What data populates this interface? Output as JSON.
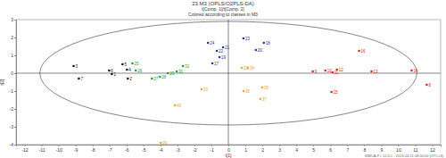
{
  "chart_data": {
    "type": "scatter",
    "title": "23.M3 (OPLS/O2PLS-DA)",
    "subtitle": "t[Comp. 1]/t[Comp. 2]",
    "annotations": [
      "Colored according to classes in M3",
      "SIMCA-P+ 12.0.1 - 2013-04-11 08:00:00 (UTC+8)"
    ],
    "x_label": "t[1]",
    "y_label": "t[2]",
    "xlim": [
      -12.5,
      12.5
    ],
    "xticks": [
      -12,
      -11,
      -10,
      -9,
      -8,
      -7,
      -6,
      -5,
      -4,
      -3,
      -2,
      -1,
      0,
      1,
      2,
      3,
      4,
      5,
      6,
      7,
      8,
      9,
      10,
      11,
      12
    ],
    "ylim": [
      -4,
      3
    ],
    "yticks": [
      -4,
      -3,
      -2,
      -1,
      0,
      1,
      2,
      3
    ],
    "grid": false,
    "marker": "circle",
    "ellipse": {
      "x_radius": 11.1,
      "y_radius": 2.9
    },
    "series": [
      {
        "color": "#111111",
        "labels": [
          "1",
          "2",
          "3",
          "4",
          "5",
          "6",
          "7"
        ],
        "x": [
          -6.86,
          -5.92,
          -9.11,
          -5.97,
          -6.23,
          -7.02,
          -8.8
        ],
        "values": [
          -0.05,
          -0.3,
          0.4,
          0.2,
          0.5,
          0.15,
          -0.3
        ]
      },
      {
        "color": "#1a9c3a",
        "labels": [
          "25",
          "26",
          "27",
          "28",
          "29",
          "30",
          "31"
        ],
        "x": [
          -5.65,
          -5.45,
          -4.5,
          -4.03,
          -3.56,
          -3.04,
          -2.67
        ],
        "values": [
          0.55,
          0.15,
          -0.3,
          -0.2,
          0,
          0.1,
          0.4
        ]
      },
      {
        "color": "#22309a",
        "labels": [
          "17",
          "18",
          "19",
          "20",
          "21",
          "22",
          "23",
          "24"
        ],
        "x": [
          -0.94,
          2.09,
          -0.52,
          1.62,
          -0.31,
          -0.68,
          0.89,
          -1.2
        ],
        "values": [
          0.55,
          1.7,
          0.9,
          1.3,
          1.45,
          1.25,
          1.95,
          1.7
        ]
      },
      {
        "color": "#f0a030",
        "labels": [
          "32",
          "33",
          "34",
          "35",
          "36",
          "37",
          "39",
          "40"
        ],
        "x": [
          0.79,
          -1.57,
          1.15,
          1.99,
          0.89,
          1.88,
          -3.98,
          -3.14
        ],
        "values": [
          0.3,
          -0.9,
          0.3,
          -0.8,
          -1.0,
          -1.45,
          -3.9,
          -1.8
        ]
      },
      {
        "color": "#e02020",
        "labels": [
          "8",
          "9",
          "10",
          "11",
          "12",
          "13",
          "14",
          "15",
          "16"
        ],
        "x": [
          11.68,
          4.97,
          5.71,
          6.13,
          6.39,
          8.43,
          10.79,
          6.07,
          7.7
        ],
        "values": [
          -0.65,
          0.1,
          0.15,
          0.05,
          0.2,
          0.1,
          0.15,
          -1.05,
          1.25
        ]
      }
    ]
  }
}
